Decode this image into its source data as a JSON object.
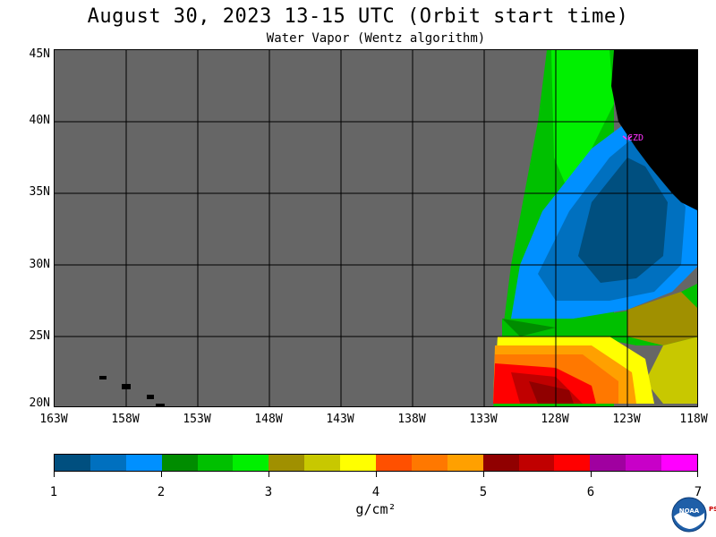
{
  "header": {
    "title": "August 30, 2023  13-15 UTC  (Orbit start time)",
    "subtitle": "Water Vapor (Wentz algorithm)"
  },
  "map": {
    "lat_labels": [
      "45N",
      "40N",
      "35N",
      "30N",
      "25N",
      "20N"
    ],
    "lon_labels": [
      "163W",
      "158W",
      "153W",
      "148W",
      "143W",
      "138W",
      "133W",
      "128W",
      "123W",
      "118W"
    ],
    "lat_range": [
      20,
      45
    ],
    "lon_range": [
      -163,
      -118
    ],
    "no_data_color": "#666666",
    "land_color": "#000000",
    "marker_label": "CZD",
    "marker_color": "#ff33ff"
  },
  "colorbar": {
    "ticks": [
      "1",
      "2",
      "3",
      "4",
      "5",
      "6",
      "7"
    ],
    "units": "g/cm²",
    "colors": [
      "#004f7f",
      "#0070bf",
      "#0090ff",
      "#008c00",
      "#00c000",
      "#00f000",
      "#a09000",
      "#c8c800",
      "#ffff00",
      "#ff5000",
      "#ff7800",
      "#ffa000",
      "#900000",
      "#c00000",
      "#ff0000",
      "#a000a0",
      "#c800c8",
      "#ff00ff"
    ]
  },
  "logo": {
    "text": "NOAA",
    "side_text": "PSL"
  }
}
